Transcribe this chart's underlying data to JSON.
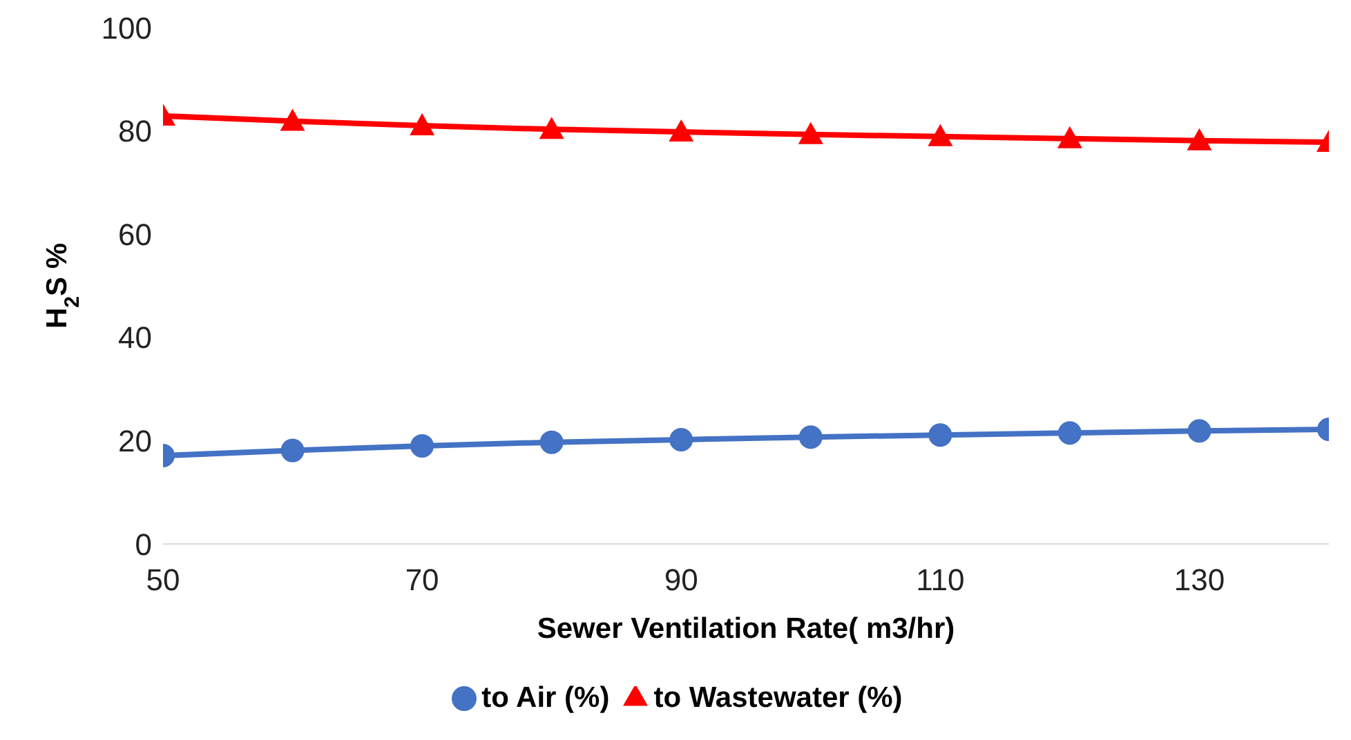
{
  "chart_data": {
    "type": "line",
    "xlabel": "Sewer Ventilation Rate( m3/hr)",
    "ylabel": "H$_{2}$S %",
    "x": [
      50,
      60,
      70,
      80,
      90,
      100,
      110,
      120,
      130,
      140
    ],
    "xlim": [
      50,
      140
    ],
    "xticks": [
      50,
      70,
      90,
      110,
      130
    ],
    "ylim": [
      0,
      100
    ],
    "yticks": [
      0,
      20,
      40,
      60,
      80,
      100
    ],
    "grid": false,
    "legend": "bottom",
    "line_style": "solid",
    "series": [
      {
        "name": "to Air (%)",
        "color": "#4472c4",
        "marker": "circle",
        "values": [
          17.1,
          18.1,
          19,
          19.7,
          20.2,
          20.7,
          21.1,
          21.5,
          21.9,
          22.2
        ]
      },
      {
        "name": "to Wastewater (%)",
        "color": "#ff0000",
        "marker": "triangle",
        "values": [
          82.9,
          81.9,
          81,
          80.3,
          79.8,
          79.3,
          78.9,
          78.5,
          78.1,
          77.8
        ]
      }
    ]
  }
}
